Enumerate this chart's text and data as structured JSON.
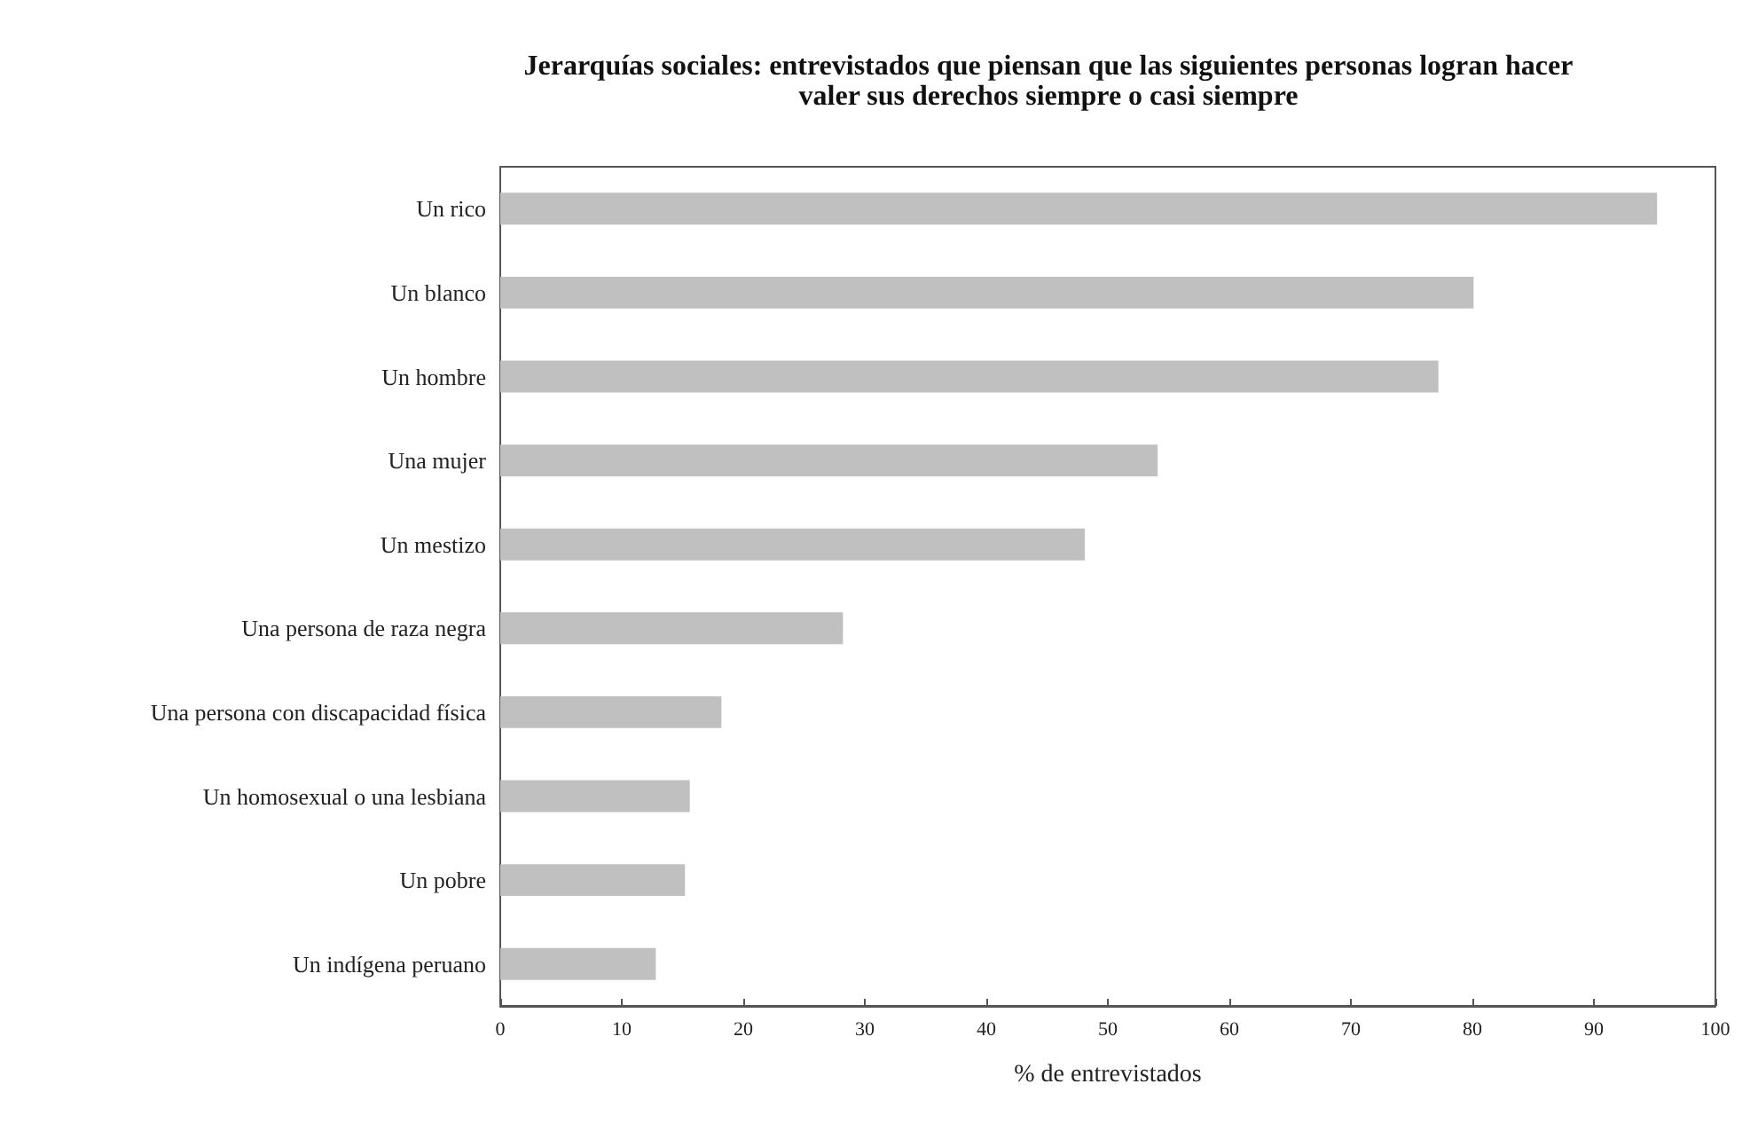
{
  "chart_data": {
    "type": "bar",
    "orientation": "horizontal",
    "title": "Jerarquías sociales: entrevistados que piensan que las siguientes personas logran hacer\nvaler sus derechos siempre o casi siempre",
    "xlabel": "% de entrevistados",
    "categories": [
      "Un rico",
      "Un blanco",
      "Un hombre",
      "Una mujer",
      "Un mestizo",
      "Una persona de raza negra",
      "Una persona con discapacidad física",
      "Un homosexual o una lesbiana",
      "Un pobre",
      "Un indígena peruano"
    ],
    "values": [
      95.2,
      80.1,
      77.2,
      54.1,
      48.1,
      28.2,
      18.2,
      15.6,
      15.2,
      12.8
    ],
    "color": "#c0c0c0",
    "xlim": [
      0,
      100
    ],
    "xticks": [
      0,
      10,
      20,
      30,
      40,
      50,
      60,
      70,
      80,
      90,
      100
    ],
    "grid": false
  }
}
